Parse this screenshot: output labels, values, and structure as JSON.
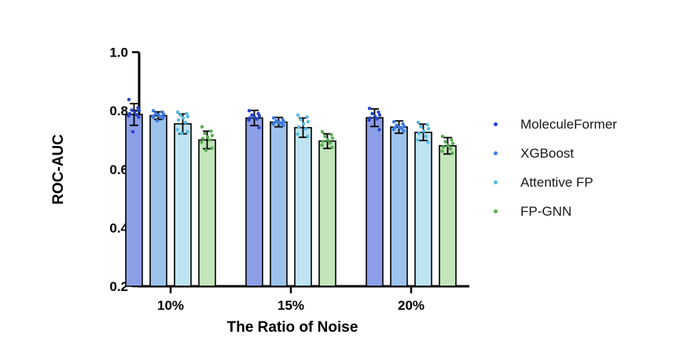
{
  "figure": {
    "background": "#ffffff",
    "axis_color": "#000000"
  },
  "chart_data": {
    "type": "bar",
    "title": "",
    "xlabel": "The Ratio of Noise",
    "ylabel": "ROC-AUC",
    "categories": [
      "10%",
      "15%",
      "20%"
    ],
    "ylim": [
      0.2,
      1.0
    ],
    "yticks": [
      0.2,
      0.4,
      0.6,
      0.8,
      1.0
    ],
    "grid": false,
    "legend_position": "right",
    "error_bar_style": "mean-plus-minus-sd",
    "series": [
      {
        "name": "MoleculeFormer",
        "bar_color": "#8C9EE8",
        "dot_color": "#2545C8",
        "values": [
          0.787,
          0.775,
          0.776
        ],
        "errors": [
          0.037,
          0.026,
          0.03
        ],
        "points": [
          [
            0.838,
            0.81,
            0.802,
            0.8,
            0.795,
            0.79,
            0.786,
            0.782,
            0.778,
            0.728
          ],
          [
            0.8,
            0.79,
            0.785,
            0.782,
            0.778,
            0.775,
            0.772,
            0.768,
            0.742
          ],
          [
            0.808,
            0.795,
            0.79,
            0.785,
            0.78,
            0.775,
            0.772,
            0.768,
            0.735
          ]
        ]
      },
      {
        "name": "XGBoost",
        "bar_color": "#9DC3ED",
        "dot_color": "#3D7BDE",
        "values": [
          0.783,
          0.761,
          0.744
        ],
        "errors": [
          0.013,
          0.016,
          0.021
        ],
        "points": [
          [
            0.8,
            0.795,
            0.79,
            0.788,
            0.785,
            0.783,
            0.78,
            0.778,
            0.775,
            0.765
          ],
          [
            0.775,
            0.77,
            0.766,
            0.763,
            0.761,
            0.759,
            0.757,
            0.754,
            0.75
          ],
          [
            0.762,
            0.755,
            0.75,
            0.747,
            0.744,
            0.742,
            0.74,
            0.736,
            0.73
          ]
        ]
      },
      {
        "name": "Attentive FP",
        "bar_color": "#BEE4F2",
        "dot_color": "#55BAE4",
        "values": [
          0.755,
          0.742,
          0.726
        ],
        "errors": [
          0.034,
          0.033,
          0.028
        ],
        "points": [
          [
            0.795,
            0.79,
            0.785,
            0.78,
            0.775,
            0.768,
            0.76,
            0.735,
            0.728,
            0.722
          ],
          [
            0.785,
            0.778,
            0.77,
            0.762,
            0.755,
            0.745,
            0.738,
            0.72,
            0.712
          ],
          [
            0.76,
            0.752,
            0.745,
            0.738,
            0.73,
            0.722,
            0.712,
            0.7,
            0.692
          ]
        ]
      },
      {
        "name": "FP-GNN",
        "bar_color": "#C2E5BA",
        "dot_color": "#57AE52",
        "values": [
          0.7,
          0.696,
          0.68
        ],
        "errors": [
          0.03,
          0.025,
          0.028
        ],
        "points": [
          [
            0.745,
            0.73,
            0.722,
            0.715,
            0.71,
            0.705,
            0.7,
            0.692,
            0.672,
            0.665
          ],
          [
            0.728,
            0.718,
            0.712,
            0.706,
            0.7,
            0.695,
            0.69,
            0.682,
            0.675
          ],
          [
            0.712,
            0.7,
            0.694,
            0.688,
            0.682,
            0.676,
            0.67,
            0.662,
            0.655
          ]
        ]
      }
    ]
  }
}
